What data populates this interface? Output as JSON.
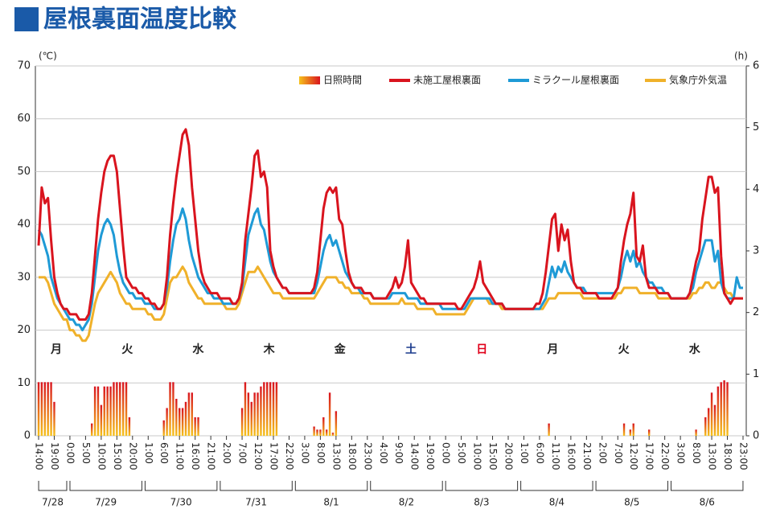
{
  "chart_data": {
    "type": "line",
    "title": "屋根裏面温度比較",
    "y_label": "(℃)",
    "y2_label": "(h)",
    "legend": "top-right",
    "grid": true,
    "ylim": [
      0,
      70
    ],
    "yticks": [
      0,
      10,
      20,
      30,
      40,
      50,
      60,
      70
    ],
    "y2lim": [
      0,
      6
    ],
    "y2ticks": [
      0,
      1,
      2,
      3,
      4,
      5,
      6
    ],
    "weekday_labels": [
      "月",
      "火",
      "水",
      "木",
      "金",
      "土",
      "日",
      "月",
      "火",
      "水"
    ],
    "weekday_colors": [
      "#222222",
      "#222222",
      "#222222",
      "#222222",
      "#222222",
      "#1a3a8c",
      "#e0001a",
      "#222222",
      "#222222",
      "#222222"
    ],
    "date_labels": [
      "7/28",
      "7/29",
      "7/30",
      "7/31",
      "8/1",
      "8/2",
      "8/3",
      "8/4",
      "8/5",
      "8/6"
    ],
    "categories": [
      "14:00",
      null,
      null,
      null,
      null,
      "19:00",
      null,
      null,
      null,
      null,
      "0:00",
      null,
      null,
      null,
      null,
      "5:00",
      null,
      null,
      null,
      null,
      "10:00",
      null,
      null,
      null,
      null,
      "15:00",
      null,
      null,
      null,
      null,
      "20:00",
      null,
      null,
      null,
      null,
      "1:00",
      null,
      null,
      null,
      null,
      "6:00",
      null,
      null,
      null,
      null,
      "11:00",
      null,
      null,
      null,
      null,
      "16:00",
      null,
      null,
      null,
      null,
      "21:00",
      null,
      null,
      null,
      null,
      "2:00",
      null,
      null,
      null,
      null,
      "7:00",
      null,
      null,
      null,
      null,
      "12:00",
      null,
      null,
      null,
      null,
      "17:00",
      null,
      null,
      null,
      null,
      "22:00",
      null,
      null,
      null,
      null,
      "3:00",
      null,
      null,
      null,
      null,
      "8:00",
      null,
      null,
      null,
      null,
      "13:00",
      null,
      null,
      null,
      null,
      "18:00",
      null,
      null,
      null,
      null,
      "23:00",
      null,
      null,
      null,
      null,
      "4:00",
      null,
      null,
      null,
      null,
      "9:00",
      null,
      null,
      null,
      null,
      "14:00",
      null,
      null,
      null,
      null,
      "19:00",
      null,
      null,
      null,
      null,
      "0:00",
      null,
      null,
      null,
      null,
      "5:00",
      null,
      null,
      null,
      null,
      "10:00",
      null,
      null,
      null,
      null,
      "15:00",
      null,
      null,
      null,
      null,
      "20:00",
      null,
      null,
      null,
      null,
      "1:00",
      null,
      null,
      null,
      null,
      "6:00",
      null,
      null,
      null,
      null,
      "11:00",
      null,
      null,
      null,
      null,
      "16:00",
      null,
      null,
      null,
      null,
      "21:00",
      null,
      null,
      null,
      null,
      "2:00",
      null,
      null,
      null,
      null,
      "7:00",
      null,
      null,
      null,
      null,
      "12:00",
      null,
      null,
      null,
      null,
      "17:00",
      null,
      null,
      null,
      null,
      "22:00",
      null,
      null,
      null,
      null,
      "3:00",
      null,
      null,
      null,
      null,
      "8:00",
      null,
      null,
      null,
      null,
      "13:00",
      null,
      null,
      null,
      null,
      "18:00",
      null,
      null,
      null,
      null,
      "23:00"
    ],
    "series": [
      {
        "name": "日照時間",
        "type": "bar",
        "axis": "y2",
        "color": "#e8641e",
        "values": [
          0.87,
          0.87,
          0.87,
          0.87,
          0.87,
          0.55,
          0,
          0,
          0,
          0,
          0,
          0,
          0,
          0,
          0,
          0,
          0,
          0.2,
          0.8,
          0.8,
          0.5,
          0.8,
          0.8,
          0.8,
          0.87,
          0.87,
          0.87,
          0.87,
          0.87,
          0.3,
          0,
          0,
          0,
          0,
          0,
          0,
          0,
          0,
          0,
          0,
          0.25,
          0.45,
          0.87,
          0.87,
          0.6,
          0.45,
          0.45,
          0.55,
          0.7,
          0.7,
          0.3,
          0.3,
          0,
          0,
          0,
          0,
          0,
          0,
          0,
          0,
          0,
          0,
          0,
          0,
          0,
          0.45,
          0.87,
          0.7,
          0.55,
          0.7,
          0.7,
          0.8,
          0.87,
          0.87,
          0.87,
          0.87,
          0.87,
          0,
          0,
          0,
          0,
          0,
          0,
          0,
          0,
          0,
          0,
          0,
          0.15,
          0.1,
          0.1,
          0.3,
          0.1,
          0.7,
          0.05,
          0.4,
          0,
          0,
          0,
          0,
          0,
          0,
          0,
          0,
          0,
          0,
          0,
          0,
          0,
          0,
          0,
          0,
          0,
          0,
          0,
          0,
          0,
          0,
          0,
          0,
          0,
          0,
          0,
          0,
          0,
          0,
          0,
          0,
          0,
          0,
          0,
          0,
          0,
          0,
          0,
          0,
          0,
          0,
          0,
          0,
          0,
          0,
          0,
          0,
          0,
          0,
          0,
          0,
          0,
          0,
          0,
          0,
          0,
          0,
          0,
          0,
          0,
          0,
          0,
          0,
          0,
          0,
          0,
          0.2,
          0,
          0,
          0,
          0,
          0,
          0,
          0,
          0,
          0,
          0,
          0,
          0,
          0,
          0,
          0,
          0,
          0,
          0,
          0,
          0,
          0,
          0,
          0,
          0.2,
          0,
          0.1,
          0.2,
          0,
          0,
          0,
          0,
          0.1,
          0,
          0,
          0,
          0,
          0,
          0,
          0,
          0,
          0,
          0,
          0,
          0,
          0,
          0,
          0.1,
          0,
          0,
          0.3,
          0.45,
          0.7,
          0.5,
          0.8,
          0.87,
          0.9,
          0.87,
          0,
          0,
          0,
          0,
          0
        ]
      },
      {
        "name": "未施工屋根裏面",
        "type": "line",
        "color": "#d9141e",
        "values": [
          36,
          47,
          44,
          45,
          37,
          30,
          27,
          25,
          24,
          24,
          23,
          23,
          23,
          22,
          22,
          22,
          23,
          27,
          34,
          41,
          46,
          50,
          52,
          53,
          53,
          50,
          43,
          36,
          30,
          29,
          28,
          28,
          27,
          27,
          26,
          26,
          25,
          25,
          24,
          24,
          25,
          30,
          38,
          44,
          49,
          53,
          57,
          58,
          55,
          47,
          41,
          35,
          31,
          29,
          28,
          27,
          27,
          27,
          26,
          26,
          26,
          26,
          25,
          25,
          26,
          29,
          37,
          42,
          47,
          53,
          54,
          49,
          50,
          47,
          35,
          32,
          30,
          29,
          28,
          28,
          27,
          27,
          27,
          27,
          27,
          27,
          27,
          27,
          28,
          31,
          37,
          43,
          46,
          47,
          46,
          47,
          41,
          40,
          35,
          31,
          29,
          28,
          28,
          28,
          27,
          27,
          27,
          26,
          26,
          26,
          26,
          26,
          27,
          28,
          30,
          28,
          29,
          32,
          37,
          29,
          28,
          27,
          26,
          26,
          25,
          25,
          25,
          25,
          25,
          25,
          25,
          25,
          25,
          25,
          24,
          24,
          25,
          26,
          27,
          28,
          30,
          33,
          29,
          28,
          27,
          26,
          25,
          25,
          25,
          24,
          24,
          24,
          24,
          24,
          24,
          24,
          24,
          24,
          24,
          25,
          25,
          27,
          31,
          36,
          41,
          42,
          35,
          40,
          37,
          39,
          33,
          29,
          28,
          28,
          27,
          27,
          27,
          27,
          27,
          26,
          26,
          26,
          26,
          26,
          27,
          28,
          33,
          37,
          40,
          42,
          46,
          34,
          33,
          36,
          30,
          28,
          28,
          28,
          27,
          27,
          27,
          27,
          26,
          26,
          26,
          26,
          26,
          26,
          27,
          30,
          33,
          35,
          41,
          45,
          49,
          49,
          46,
          47,
          34,
          27,
          26,
          25,
          26,
          26,
          26,
          26
        ]
      },
      {
        "name": "ミラクール屋根裏面",
        "type": "line",
        "color": "#1e9ad6",
        "values": [
          39,
          38,
          36,
          34,
          30,
          28,
          26,
          25,
          24,
          23,
          22,
          22,
          21,
          21,
          20,
          21,
          22,
          25,
          30,
          35,
          38,
          40,
          41,
          40,
          38,
          34,
          31,
          29,
          28,
          27,
          27,
          26,
          26,
          26,
          25,
          25,
          25,
          24,
          24,
          24,
          25,
          28,
          33,
          37,
          40,
          41,
          43,
          41,
          37,
          34,
          32,
          30,
          29,
          28,
          27,
          27,
          26,
          26,
          26,
          25,
          25,
          25,
          25,
          25,
          26,
          28,
          33,
          38,
          40,
          42,
          43,
          40,
          39,
          36,
          33,
          31,
          30,
          29,
          28,
          28,
          27,
          27,
          27,
          27,
          27,
          27,
          27,
          27,
          27,
          29,
          32,
          35,
          37,
          38,
          36,
          37,
          35,
          33,
          31,
          30,
          29,
          28,
          28,
          27,
          27,
          27,
          27,
          26,
          26,
          26,
          26,
          26,
          26,
          27,
          27,
          27,
          27,
          27,
          26,
          26,
          26,
          26,
          25,
          25,
          25,
          25,
          25,
          25,
          25,
          24,
          24,
          24,
          24,
          24,
          24,
          24,
          24,
          25,
          26,
          26,
          26,
          26,
          26,
          26,
          26,
          25,
          25,
          25,
          25,
          24,
          24,
          24,
          24,
          24,
          24,
          24,
          24,
          24,
          24,
          24,
          24,
          25,
          26,
          29,
          32,
          30,
          32,
          31,
          33,
          31,
          30,
          29,
          28,
          28,
          28,
          27,
          27,
          27,
          27,
          27,
          27,
          27,
          27,
          27,
          27,
          28,
          30,
          33,
          35,
          33,
          35,
          32,
          33,
          31,
          30,
          29,
          29,
          28,
          28,
          28,
          27,
          27,
          26,
          26,
          26,
          26,
          26,
          26,
          27,
          28,
          31,
          33,
          35,
          37,
          37,
          37,
          33,
          35,
          29,
          27,
          26,
          26,
          26,
          30,
          28,
          28
        ]
      },
      {
        "name": "気象庁外気温",
        "type": "line",
        "color": "#f0b12a",
        "values": [
          30,
          30,
          30,
          29,
          27,
          25,
          24,
          23,
          22,
          22,
          20,
          20,
          19,
          19,
          18,
          18,
          19,
          22,
          25,
          27,
          28,
          29,
          30,
          31,
          30,
          29,
          27,
          26,
          25,
          25,
          24,
          24,
          24,
          24,
          24,
          23,
          23,
          22,
          22,
          22,
          23,
          26,
          29,
          30,
          30,
          31,
          32,
          31,
          29,
          28,
          27,
          26,
          26,
          25,
          25,
          25,
          25,
          25,
          25,
          25,
          24,
          24,
          24,
          24,
          25,
          27,
          29,
          31,
          31,
          31,
          32,
          31,
          30,
          29,
          28,
          27,
          27,
          27,
          26,
          26,
          26,
          26,
          26,
          26,
          26,
          26,
          26,
          26,
          26,
          27,
          28,
          29,
          30,
          30,
          30,
          30,
          29,
          29,
          28,
          28,
          27,
          27,
          27,
          27,
          26,
          26,
          25,
          25,
          25,
          25,
          25,
          25,
          25,
          25,
          25,
          25,
          26,
          25,
          25,
          25,
          25,
          24,
          24,
          24,
          24,
          24,
          24,
          23,
          23,
          23,
          23,
          23,
          23,
          23,
          23,
          23,
          23,
          24,
          25,
          26,
          26,
          26,
          26,
          26,
          25,
          25,
          25,
          25,
          24,
          24,
          24,
          24,
          24,
          24,
          24,
          24,
          24,
          24,
          24,
          24,
          24,
          24,
          25,
          26,
          26,
          26,
          27,
          27,
          27,
          27,
          27,
          27,
          27,
          27,
          26,
          26,
          26,
          26,
          26,
          26,
          26,
          26,
          26,
          26,
          26,
          27,
          27,
          28,
          28,
          28,
          28,
          28,
          27,
          27,
          27,
          27,
          27,
          27,
          26,
          26,
          26,
          26,
          26,
          26,
          26,
          26,
          26,
          26,
          26,
          27,
          27,
          28,
          28,
          29,
          29,
          28,
          28,
          29,
          29,
          28,
          27,
          27,
          26,
          26,
          26,
          26
        ]
      }
    ]
  }
}
